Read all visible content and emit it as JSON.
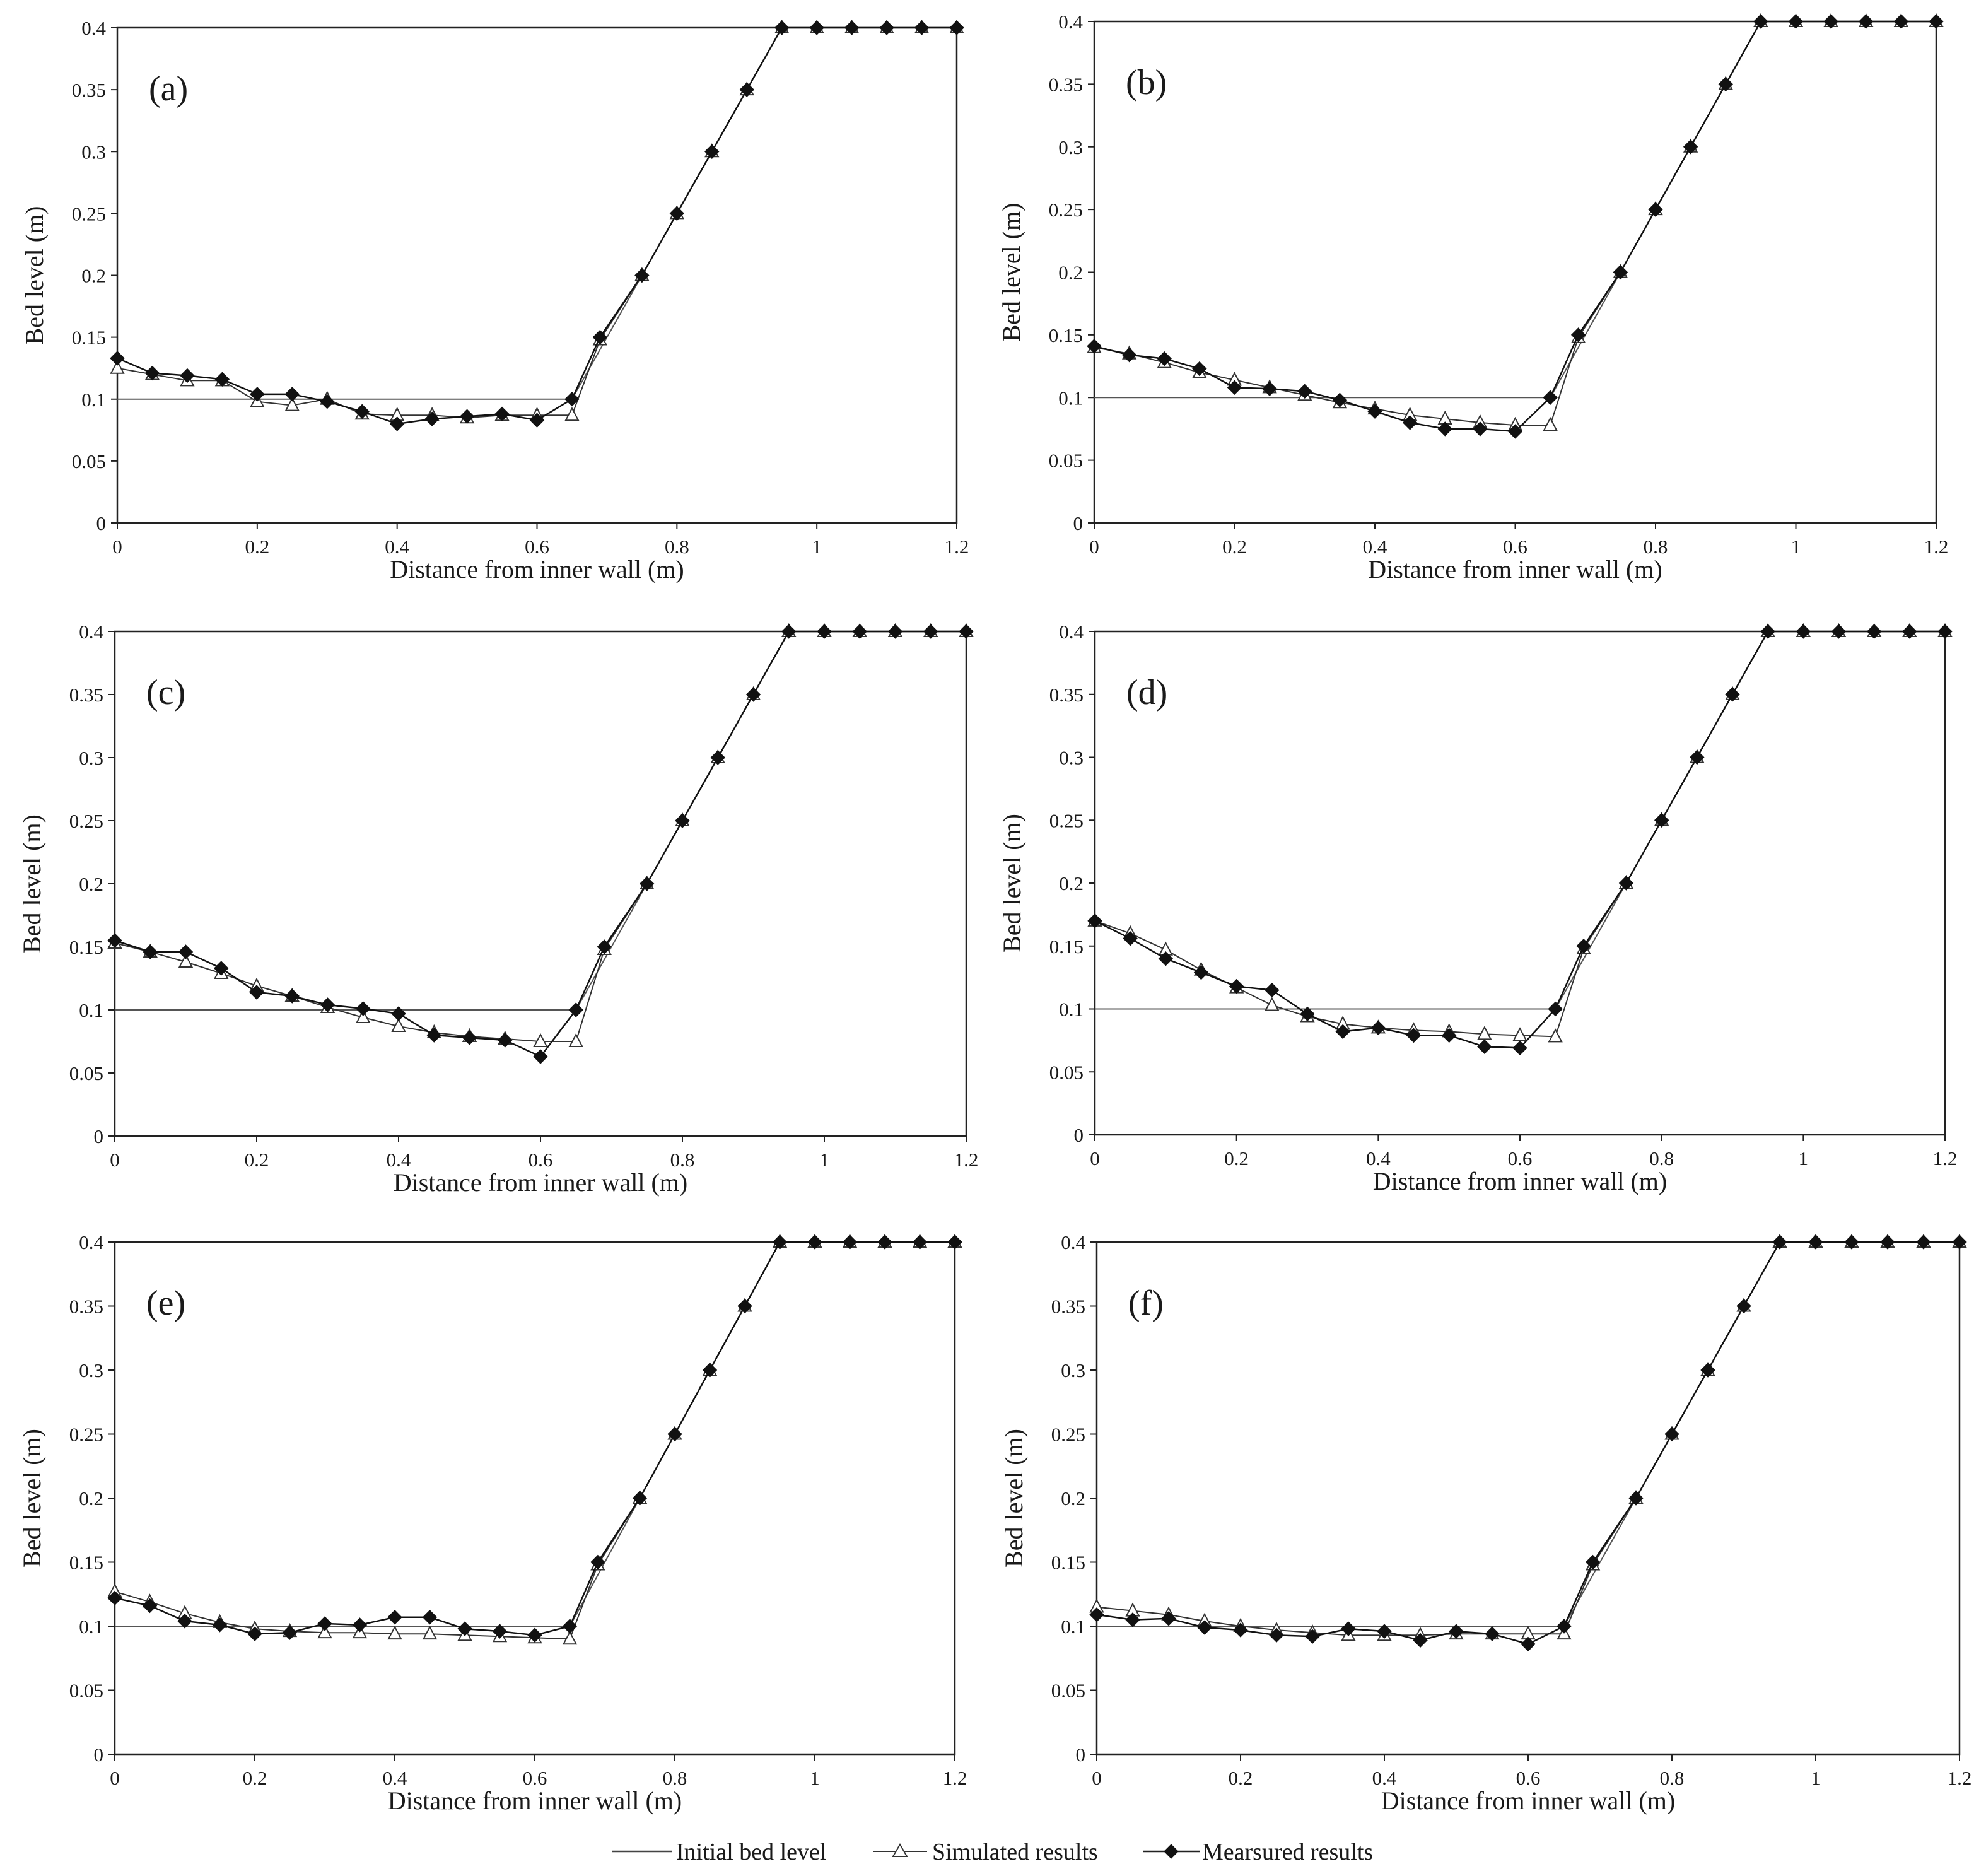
{
  "legend": {
    "initial": "Initial bed level",
    "simulated": "Simulated results",
    "measured": "Mearsured results"
  },
  "chart_data": [
    {
      "type": "line",
      "panel": "(a)",
      "xlabel": "Distance from inner wall (m)",
      "ylabel": "Bed level (m)",
      "xlim": [
        0,
        1.2
      ],
      "ylim": [
        0,
        0.4
      ],
      "xticks": [
        "0",
        "0.2",
        "0.4",
        "0.6",
        "0.8",
        "1",
        "1.2"
      ],
      "yticks": [
        "0",
        "0.05",
        "0.1",
        "0.15",
        "0.2",
        "0.25",
        "0.3",
        "0.35",
        "0.4"
      ],
      "series": [
        {
          "name": "Initial bed level",
          "x": [
            0,
            0.65,
            0.95,
            1.2
          ],
          "y": [
            0.1,
            0.1,
            0.4,
            0.4
          ]
        },
        {
          "name": "Simulated results",
          "x": [
            0,
            0.05,
            0.1,
            0.15,
            0.2,
            0.25,
            0.3,
            0.35,
            0.4,
            0.45,
            0.5,
            0.55,
            0.6,
            0.65,
            0.69,
            0.75,
            0.8,
            0.85,
            0.9,
            0.95,
            1.0,
            1.05,
            1.1,
            1.15,
            1.2
          ],
          "y": [
            0.125,
            0.12,
            0.115,
            0.115,
            0.098,
            0.095,
            0.1,
            0.088,
            0.087,
            0.087,
            0.085,
            0.087,
            0.087,
            0.087,
            0.148,
            0.2,
            0.25,
            0.3,
            0.35,
            0.4,
            0.4,
            0.4,
            0.4,
            0.4,
            0.4
          ]
        },
        {
          "name": "Mearsured results",
          "x": [
            0,
            0.05,
            0.1,
            0.15,
            0.2,
            0.25,
            0.3,
            0.35,
            0.4,
            0.45,
            0.5,
            0.55,
            0.6,
            0.65,
            0.69,
            0.75,
            0.8,
            0.85,
            0.9,
            0.95,
            1.0,
            1.05,
            1.1,
            1.15,
            1.2
          ],
          "y": [
            0.133,
            0.121,
            0.119,
            0.116,
            0.104,
            0.104,
            0.098,
            0.09,
            0.08,
            0.084,
            0.086,
            0.088,
            0.083,
            0.1,
            0.15,
            0.2,
            0.25,
            0.3,
            0.35,
            0.4,
            0.4,
            0.4,
            0.4,
            0.4,
            0.4
          ]
        }
      ]
    },
    {
      "type": "line",
      "panel": "(b)",
      "xlabel": "Distance from inner wall (m)",
      "ylabel": "Bed level (m)",
      "xlim": [
        0,
        1.2
      ],
      "ylim": [
        0,
        0.4
      ],
      "xticks": [
        "0",
        "0.2",
        "0.4",
        "0.6",
        "0.8",
        "1",
        "1.2"
      ],
      "yticks": [
        "0",
        "0.05",
        "0.1",
        "0.15",
        "0.2",
        "0.25",
        "0.3",
        "0.35",
        "0.4"
      ],
      "series": [
        {
          "name": "Initial bed level",
          "x": [
            0,
            0.65,
            0.95,
            1.2
          ],
          "y": [
            0.1,
            0.1,
            0.4,
            0.4
          ]
        },
        {
          "name": "Simulated results",
          "x": [
            0,
            0.05,
            0.1,
            0.15,
            0.2,
            0.25,
            0.3,
            0.35,
            0.4,
            0.45,
            0.5,
            0.55,
            0.6,
            0.65,
            0.69,
            0.75,
            0.8,
            0.85,
            0.9,
            0.95,
            1.0,
            1.05,
            1.1,
            1.15,
            1.2
          ],
          "y": [
            0.14,
            0.135,
            0.128,
            0.12,
            0.114,
            0.108,
            0.102,
            0.096,
            0.091,
            0.086,
            0.083,
            0.08,
            0.078,
            0.078,
            0.148,
            0.2,
            0.25,
            0.3,
            0.35,
            0.4,
            0.4,
            0.4,
            0.4,
            0.4,
            0.4
          ]
        },
        {
          "name": "Mearsured results",
          "x": [
            0,
            0.05,
            0.1,
            0.15,
            0.2,
            0.25,
            0.3,
            0.35,
            0.4,
            0.45,
            0.5,
            0.55,
            0.6,
            0.65,
            0.69,
            0.75,
            0.8,
            0.85,
            0.9,
            0.95,
            1.0,
            1.05,
            1.1,
            1.15,
            1.2
          ],
          "y": [
            0.141,
            0.134,
            0.131,
            0.123,
            0.108,
            0.107,
            0.105,
            0.098,
            0.089,
            0.08,
            0.075,
            0.075,
            0.073,
            0.1,
            0.15,
            0.2,
            0.25,
            0.3,
            0.35,
            0.4,
            0.4,
            0.4,
            0.4,
            0.4,
            0.4
          ]
        }
      ]
    },
    {
      "type": "line",
      "panel": "(c)",
      "xlabel": "Distance from inner wall (m)",
      "ylabel": "Bed level (m)",
      "xlim": [
        0,
        1.2
      ],
      "ylim": [
        0,
        0.4
      ],
      "xticks": [
        "0",
        "0.2",
        "0.4",
        "0.6",
        "0.8",
        "1",
        "1.2"
      ],
      "yticks": [
        "0",
        "0.05",
        "0.1",
        "0.15",
        "0.2",
        "0.25",
        "0.3",
        "0.35",
        "0.4"
      ],
      "series": [
        {
          "name": "Initial bed level",
          "x": [
            0,
            0.65,
            0.95,
            1.2
          ],
          "y": [
            0.1,
            0.1,
            0.4,
            0.4
          ]
        },
        {
          "name": "Simulated results",
          "x": [
            0,
            0.05,
            0.1,
            0.15,
            0.2,
            0.25,
            0.3,
            0.35,
            0.4,
            0.45,
            0.5,
            0.55,
            0.6,
            0.65,
            0.69,
            0.75,
            0.8,
            0.85,
            0.9,
            0.95,
            1.0,
            1.05,
            1.1,
            1.15,
            1.2
          ],
          "y": [
            0.153,
            0.146,
            0.138,
            0.129,
            0.119,
            0.111,
            0.102,
            0.094,
            0.087,
            0.082,
            0.079,
            0.077,
            0.075,
            0.075,
            0.148,
            0.2,
            0.25,
            0.3,
            0.35,
            0.4,
            0.4,
            0.4,
            0.4,
            0.4,
            0.4
          ]
        },
        {
          "name": "Mearsured results",
          "x": [
            0,
            0.05,
            0.1,
            0.15,
            0.2,
            0.25,
            0.3,
            0.35,
            0.4,
            0.45,
            0.5,
            0.55,
            0.6,
            0.65,
            0.69,
            0.75,
            0.8,
            0.85,
            0.9,
            0.95,
            1.0,
            1.05,
            1.1,
            1.15,
            1.2
          ],
          "y": [
            0.155,
            0.146,
            0.146,
            0.133,
            0.114,
            0.111,
            0.104,
            0.101,
            0.097,
            0.08,
            0.078,
            0.076,
            0.063,
            0.1,
            0.15,
            0.2,
            0.25,
            0.3,
            0.35,
            0.4,
            0.4,
            0.4,
            0.4,
            0.4,
            0.4
          ]
        }
      ]
    },
    {
      "type": "line",
      "panel": "(d)",
      "xlabel": "Distance from inner wall (m)",
      "ylabel": "Bed level (m)",
      "xlim": [
        0,
        1.2
      ],
      "ylim": [
        0,
        0.4
      ],
      "xticks": [
        "0",
        "0.2",
        "0.4",
        "0.6",
        "0.8",
        "1",
        "1.2"
      ],
      "yticks": [
        "0",
        "0.05",
        "0.1",
        "0.15",
        "0.2",
        "0.25",
        "0.3",
        "0.35",
        "0.4"
      ],
      "series": [
        {
          "name": "Initial bed level",
          "x": [
            0,
            0.65,
            0.95,
            1.2
          ],
          "y": [
            0.1,
            0.1,
            0.4,
            0.4
          ]
        },
        {
          "name": "Simulated results",
          "x": [
            0,
            0.05,
            0.1,
            0.15,
            0.2,
            0.25,
            0.3,
            0.35,
            0.4,
            0.45,
            0.5,
            0.55,
            0.6,
            0.65,
            0.69,
            0.75,
            0.8,
            0.85,
            0.9,
            0.95,
            1.0,
            1.05,
            1.1,
            1.15,
            1.2
          ],
          "y": [
            0.17,
            0.16,
            0.147,
            0.131,
            0.117,
            0.103,
            0.094,
            0.088,
            0.085,
            0.083,
            0.082,
            0.08,
            0.079,
            0.078,
            0.148,
            0.2,
            0.25,
            0.3,
            0.35,
            0.4,
            0.4,
            0.4,
            0.4,
            0.4,
            0.4
          ]
        },
        {
          "name": "Mearsured results",
          "x": [
            0,
            0.05,
            0.1,
            0.15,
            0.2,
            0.25,
            0.3,
            0.35,
            0.4,
            0.45,
            0.5,
            0.55,
            0.6,
            0.65,
            0.69,
            0.75,
            0.8,
            0.85,
            0.9,
            0.95,
            1.0,
            1.05,
            1.1,
            1.15,
            1.2
          ],
          "y": [
            0.17,
            0.156,
            0.14,
            0.129,
            0.118,
            0.115,
            0.096,
            0.082,
            0.085,
            0.079,
            0.079,
            0.07,
            0.069,
            0.1,
            0.15,
            0.2,
            0.25,
            0.3,
            0.35,
            0.4,
            0.4,
            0.4,
            0.4,
            0.4,
            0.4
          ]
        }
      ]
    },
    {
      "type": "line",
      "panel": "(e)",
      "xlabel": "Distance from inner wall (m)",
      "ylabel": "Bed level (m)",
      "xlim": [
        0,
        1.2
      ],
      "ylim": [
        0,
        0.4
      ],
      "xticks": [
        "0",
        "0.2",
        "0.4",
        "0.6",
        "0.8",
        "1",
        "1.2"
      ],
      "yticks": [
        "0",
        "0.05",
        "0.1",
        "0.15",
        "0.2",
        "0.25",
        "0.3",
        "0.35",
        "0.4"
      ],
      "series": [
        {
          "name": "Initial bed level",
          "x": [
            0,
            0.65,
            0.95,
            1.2
          ],
          "y": [
            0.1,
            0.1,
            0.4,
            0.4
          ]
        },
        {
          "name": "Simulated results",
          "x": [
            0,
            0.05,
            0.1,
            0.15,
            0.2,
            0.25,
            0.3,
            0.35,
            0.4,
            0.45,
            0.5,
            0.55,
            0.6,
            0.65,
            0.69,
            0.75,
            0.8,
            0.85,
            0.9,
            0.95,
            1.0,
            1.05,
            1.1,
            1.15,
            1.2
          ],
          "y": [
            0.127,
            0.119,
            0.11,
            0.103,
            0.098,
            0.096,
            0.095,
            0.095,
            0.094,
            0.094,
            0.093,
            0.092,
            0.091,
            0.09,
            0.148,
            0.2,
            0.25,
            0.3,
            0.35,
            0.4,
            0.4,
            0.4,
            0.4,
            0.4,
            0.4
          ]
        },
        {
          "name": "Mearsured results",
          "x": [
            0,
            0.05,
            0.1,
            0.15,
            0.2,
            0.25,
            0.3,
            0.35,
            0.4,
            0.45,
            0.5,
            0.55,
            0.6,
            0.65,
            0.69,
            0.75,
            0.8,
            0.85,
            0.9,
            0.95,
            1.0,
            1.05,
            1.1,
            1.15,
            1.2
          ],
          "y": [
            0.122,
            0.116,
            0.104,
            0.101,
            0.094,
            0.095,
            0.102,
            0.101,
            0.107,
            0.107,
            0.098,
            0.096,
            0.093,
            0.1,
            0.15,
            0.2,
            0.25,
            0.3,
            0.35,
            0.4,
            0.4,
            0.4,
            0.4,
            0.4,
            0.4
          ]
        }
      ]
    },
    {
      "type": "line",
      "panel": "(f)",
      "xlabel": "Distance from inner wall (m)",
      "ylabel": "Bed level (m)",
      "xlim": [
        0,
        1.2
      ],
      "ylim": [
        0,
        0.4
      ],
      "xticks": [
        "0",
        "0.2",
        "0.4",
        "0.6",
        "0.8",
        "1",
        "1.2"
      ],
      "yticks": [
        "0",
        "0.05",
        "0.1",
        "0.15",
        "0.2",
        "0.25",
        "0.3",
        "0.35",
        "0.4"
      ],
      "series": [
        {
          "name": "Initial bed level",
          "x": [
            0,
            0.65,
            0.95,
            1.2
          ],
          "y": [
            0.1,
            0.1,
            0.4,
            0.4
          ]
        },
        {
          "name": "Simulated results",
          "x": [
            0,
            0.05,
            0.1,
            0.15,
            0.2,
            0.25,
            0.3,
            0.35,
            0.4,
            0.45,
            0.5,
            0.55,
            0.6,
            0.65,
            0.69,
            0.75,
            0.8,
            0.85,
            0.9,
            0.95,
            1.0,
            1.05,
            1.1,
            1.15,
            1.2
          ],
          "y": [
            0.115,
            0.112,
            0.109,
            0.104,
            0.1,
            0.097,
            0.095,
            0.093,
            0.093,
            0.093,
            0.094,
            0.094,
            0.094,
            0.094,
            0.148,
            0.2,
            0.25,
            0.3,
            0.35,
            0.4,
            0.4,
            0.4,
            0.4,
            0.4,
            0.4
          ]
        },
        {
          "name": "Mearsured results",
          "x": [
            0,
            0.05,
            0.1,
            0.15,
            0.2,
            0.25,
            0.3,
            0.35,
            0.4,
            0.45,
            0.5,
            0.55,
            0.6,
            0.65,
            0.69,
            0.75,
            0.8,
            0.85,
            0.9,
            0.95,
            1.0,
            1.05,
            1.1,
            1.15,
            1.2
          ],
          "y": [
            0.109,
            0.105,
            0.106,
            0.099,
            0.097,
            0.093,
            0.092,
            0.098,
            0.096,
            0.089,
            0.096,
            0.094,
            0.086,
            0.1,
            0.15,
            0.2,
            0.25,
            0.3,
            0.35,
            0.4,
            0.4,
            0.4,
            0.4,
            0.4,
            0.4
          ]
        }
      ]
    }
  ]
}
